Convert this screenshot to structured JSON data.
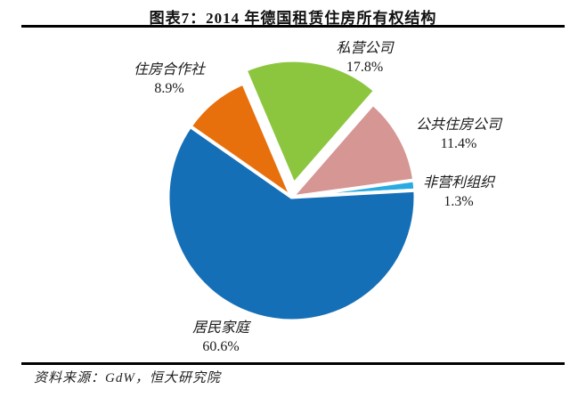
{
  "title": "图表7：2014 年德国租赁住房所有权结构",
  "source": "资料来源：GdW，恒大研究院",
  "chart_data": {
    "type": "pie",
    "title": "2014 年德国租赁住房所有权结构",
    "legend_position": "none",
    "start_angle_deg": -23,
    "slices": [
      {
        "key": "private-company",
        "label": "私营公司",
        "value": 17.8,
        "display": "17.8%",
        "color": "#8CC63F",
        "explode": 15
      },
      {
        "key": "public-housing-company",
        "label": "公共住房公司",
        "value": 11.4,
        "display": "11.4%",
        "color": "#D69694",
        "explode": 0
      },
      {
        "key": "non-profit",
        "label": "非营利组织",
        "value": 1.3,
        "display": "1.3%",
        "color": "#29ABE2",
        "explode": 0
      },
      {
        "key": "resident-household",
        "label": "居民家庭",
        "value": 60.6,
        "display": "60.6%",
        "color": "#156FB7",
        "explode": 0
      },
      {
        "key": "housing-cooperative",
        "label": "住房合作社",
        "value": 8.9,
        "display": "8.9%",
        "color": "#E7700D",
        "explode": 0
      }
    ]
  }
}
